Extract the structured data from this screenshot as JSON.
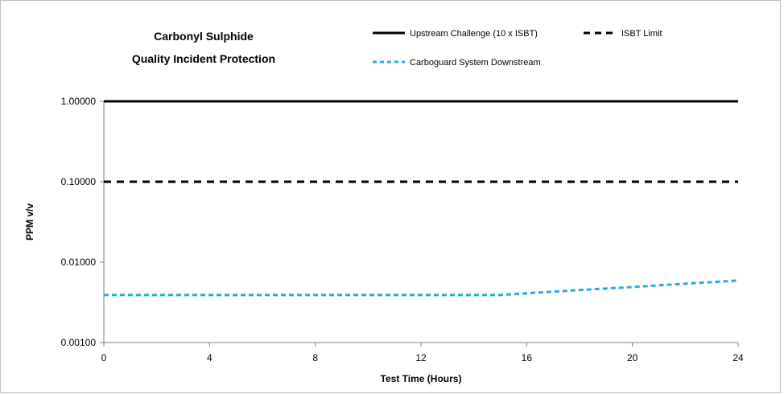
{
  "chart_data": {
    "type": "line",
    "title_lines": [
      "Carbonyl Sulphide",
      "Quality Incident Protection"
    ],
    "xlabel": "Test Time (Hours)",
    "ylabel": "PPM v/v",
    "xlim": [
      0,
      24
    ],
    "ylim": [
      0.001,
      1
    ],
    "yscale": "log",
    "x_ticks": [
      "0",
      "4",
      "8",
      "12",
      "16",
      "20",
      "24"
    ],
    "y_ticks": [
      "1.00000",
      "0.10000",
      "0.01000",
      "0.00100"
    ],
    "grid": false,
    "legend_position": "top-right",
    "series": [
      {
        "name": "Upstream Challenge (10 x ISBT)",
        "color": "#000000",
        "style": "solid",
        "x": [
          0,
          24
        ],
        "y": [
          1.0,
          1.0
        ]
      },
      {
        "name": "ISBT Limit",
        "color": "#000000",
        "style": "dashed",
        "x": [
          0,
          24
        ],
        "y": [
          0.1,
          0.1
        ]
      },
      {
        "name": "Carboguard System Downstream",
        "color": "#29abe2",
        "style": "dashed",
        "x": [
          0,
          15,
          16,
          18,
          20,
          22,
          24
        ],
        "y": [
          0.0039,
          0.0039,
          0.0041,
          0.0045,
          0.0049,
          0.0054,
          0.0059
        ]
      }
    ]
  }
}
